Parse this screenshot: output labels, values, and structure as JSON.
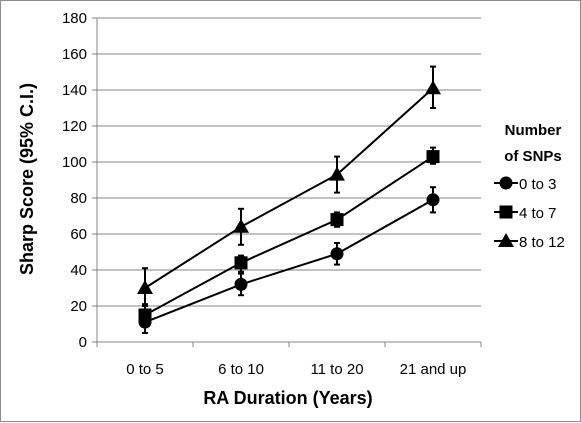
{
  "chart_data": {
    "type": "line",
    "xlabel": "RA Duration (Years)",
    "ylabel": "Sharp Score (95% C.I.)",
    "categories": [
      "0 to 5",
      "6 to 10",
      "11 to 20",
      "21 and up"
    ],
    "ylim": [
      0,
      180
    ],
    "yticks": [
      0,
      20,
      40,
      60,
      80,
      100,
      120,
      140,
      160,
      180
    ],
    "grid": "horizontal",
    "legend": {
      "title_lines": [
        "Number",
        "of SNPs"
      ],
      "placement": "right"
    },
    "series": [
      {
        "name": "0 to 3",
        "marker": "circle",
        "values": [
          11,
          32,
          49,
          79
        ],
        "ci_low": [
          5,
          26,
          43,
          72
        ],
        "ci_high": [
          17,
          38,
          55,
          86
        ]
      },
      {
        "name": "4 to 7",
        "marker": "square",
        "values": [
          15,
          44,
          68,
          103
        ],
        "ci_low": [
          9,
          39,
          64,
          99
        ],
        "ci_high": [
          21,
          48,
          72,
          108
        ]
      },
      {
        "name": "8 to 12",
        "marker": "triangle",
        "values": [
          30,
          64,
          93,
          141
        ],
        "ci_low": [
          20,
          54,
          83,
          130
        ],
        "ci_high": [
          41,
          74,
          103,
          153
        ]
      }
    ],
    "colors": {
      "series": "#000000",
      "grid": "#868686",
      "axis": "#868686"
    }
  }
}
